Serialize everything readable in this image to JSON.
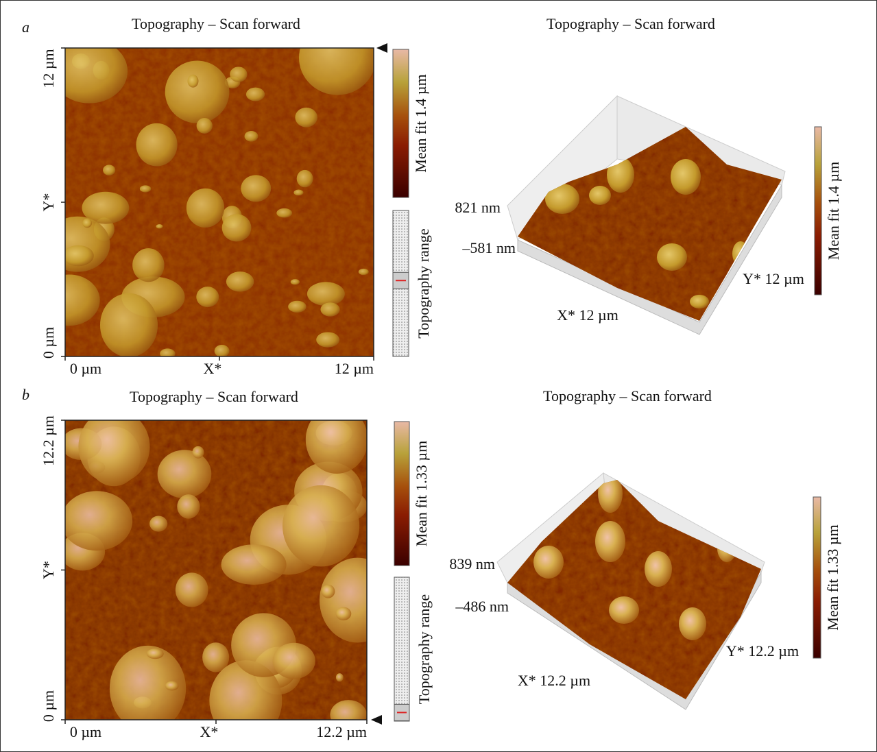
{
  "panels": [
    {
      "label": "a",
      "map": {
        "title": "Topography – Scan forward",
        "y_labels": [
          "12 µm",
          "Y*",
          "0 µm"
        ],
        "x_labels": [
          "0 µm",
          "X*",
          "12 µm"
        ],
        "colorbar_label": "Mean fit 1.4 µm",
        "range_label": "Topography  range"
      },
      "surface": {
        "title": "Topography – Scan forward",
        "z_max": "821 nm",
        "z_min": "–581 nm",
        "x_label": "X* 12 µm",
        "y_label": "Y* 12 µm",
        "colorbar_label": "Mean fit 1.4 µm"
      }
    },
    {
      "label": "b",
      "map": {
        "title": "Topography – Scan forward",
        "y_labels": [
          "12.2 µm",
          "Y*",
          "0 µm"
        ],
        "x_labels": [
          "0 µm",
          "X*",
          "12.2 µm"
        ],
        "colorbar_label": "Mean fit 1.33 µm",
        "range_label": "Topography  range"
      },
      "surface": {
        "title": "Topography – Scan forward",
        "z_max": "839 nm",
        "z_min": "–486 nm",
        "x_label": "X* 12.2 µm",
        "y_label": "Y* 12.2 µm",
        "colorbar_label": "Mean fit 1.33 µm"
      }
    }
  ]
}
